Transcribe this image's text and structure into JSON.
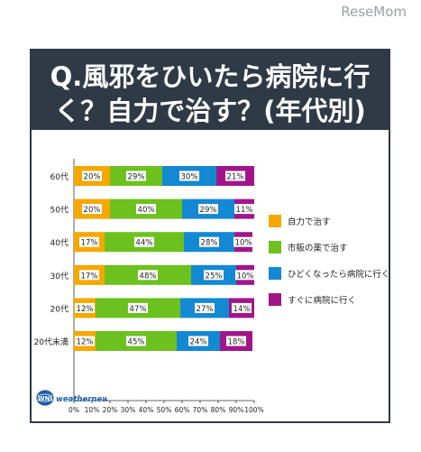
{
  "watermark": "ReseMom",
  "title": {
    "line1": "Q.風邪をひいたら病院に行",
    "line2": "く？自力で治す？(年代別)"
  },
  "logo_text": "weathernews",
  "colors": {
    "title_bg": "#2f3a46",
    "series": [
      "#f5a800",
      "#6cc11f",
      "#1388d3",
      "#a0168a"
    ]
  },
  "chart_data": {
    "type": "bar",
    "orientation": "horizontal",
    "stacked": true,
    "categories": [
      "60代",
      "50代",
      "40代",
      "30代",
      "20代",
      "20代未満"
    ],
    "series": [
      {
        "name": "自力で治す",
        "values": [
          20,
          20,
          17,
          17,
          12,
          12
        ],
        "labels": [
          "20%",
          "20%",
          "17%",
          "17%",
          "12%",
          "12%"
        ]
      },
      {
        "name": "市販の薬で治す",
        "values": [
          29,
          40,
          44,
          48,
          47,
          45
        ],
        "labels": [
          "29%",
          "40%",
          "44%",
          "48%",
          "47%",
          "45%"
        ]
      },
      {
        "name": "ひどくなったら病院に行く",
        "values": [
          30,
          29,
          28,
          25,
          27,
          24
        ],
        "labels": [
          "30%",
          "29%",
          "28%",
          "25%",
          "27%",
          "24%"
        ]
      },
      {
        "name": "すぐに病院に行く",
        "values": [
          21,
          11,
          10,
          10,
          14,
          18
        ],
        "labels": [
          "21%",
          "11%",
          "10%",
          "10%",
          "14%",
          "18%"
        ]
      }
    ],
    "xticks": [
      "0%",
      "10%",
      "20%",
      "30%",
      "40%",
      "50%",
      "60%",
      "70%",
      "80%",
      "90%",
      "100%"
    ],
    "xlim": [
      0,
      100
    ],
    "legend_position": "right",
    "grid": false
  }
}
